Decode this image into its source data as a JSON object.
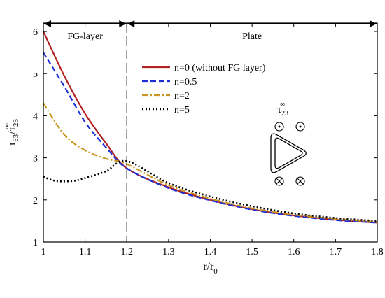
{
  "chart_data": {
    "type": "line",
    "xlabel": "r/r0",
    "xlabel_main": "r/r",
    "xlabel_sub": "0",
    "ylabel_parts": [
      "τ",
      "θ3",
      "/τ",
      "23",
      "∞"
    ],
    "xlim": [
      1,
      1.8
    ],
    "ylim": [
      1,
      6.2
    ],
    "x_ticks": [
      "1",
      "1.1",
      "1.2",
      "1.3",
      "1.4",
      "1.5",
      "1.6",
      "1.7",
      "1.8"
    ],
    "y_ticks": [
      "1",
      "2",
      "3",
      "4",
      "5",
      "6"
    ],
    "grid": false,
    "legend_position": "upper-middle",
    "regions": [
      {
        "label": "FG-layer",
        "x_from": 1.0,
        "x_to": 1.2
      },
      {
        "label": "Plate",
        "x_from": 1.2,
        "x_to": 1.8
      }
    ],
    "divider_x": 1.2,
    "series": [
      {
        "name": "n=0 (without FG layer)",
        "color": "#b22222",
        "dash": "solid",
        "x": [
          1.0,
          1.05,
          1.1,
          1.15,
          1.2,
          1.3,
          1.4,
          1.5,
          1.6,
          1.7,
          1.8
        ],
        "y": [
          6.0,
          4.95,
          4.05,
          3.35,
          2.75,
          2.3,
          2.0,
          1.78,
          1.63,
          1.53,
          1.46
        ]
      },
      {
        "name": "n=0.5",
        "color": "#1f2fd6",
        "dash": "dashed",
        "x": [
          1.0,
          1.05,
          1.1,
          1.15,
          1.2,
          1.3,
          1.4,
          1.5,
          1.6,
          1.7,
          1.8
        ],
        "y": [
          5.5,
          4.7,
          3.85,
          3.25,
          2.75,
          2.28,
          1.99,
          1.77,
          1.62,
          1.52,
          1.46
        ]
      },
      {
        "name": "n=2",
        "color": "#c8961e",
        "dash": "dashdot",
        "x": [
          1.0,
          1.05,
          1.1,
          1.15,
          1.2,
          1.3,
          1.4,
          1.5,
          1.6,
          1.7,
          1.8
        ],
        "y": [
          4.3,
          3.55,
          3.18,
          2.98,
          2.85,
          2.35,
          2.03,
          1.8,
          1.65,
          1.55,
          1.48
        ]
      },
      {
        "name": "n=5",
        "color": "#000000",
        "dash": "dotted",
        "x": [
          1.0,
          1.03,
          1.07,
          1.1,
          1.15,
          1.2,
          1.3,
          1.4,
          1.5,
          1.6,
          1.7,
          1.8
        ],
        "y": [
          2.55,
          2.45,
          2.45,
          2.52,
          2.68,
          2.92,
          2.4,
          2.08,
          1.85,
          1.68,
          1.57,
          1.5
        ]
      }
    ],
    "inset": {
      "label_main": "τ",
      "label_sub": "23",
      "label_sup": "∞"
    }
  }
}
